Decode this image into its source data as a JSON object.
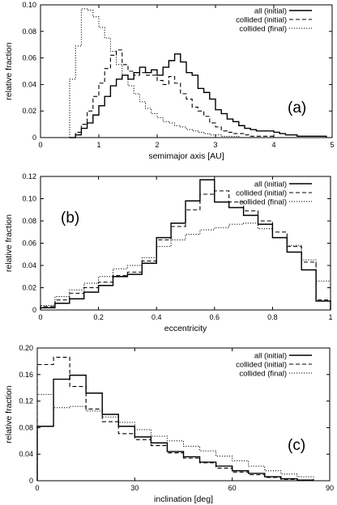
{
  "chart_data": [
    {
      "type": "line",
      "step": true,
      "panel_label": "(a)",
      "xlabel": "semimajor axis [AU]",
      "ylabel": "relative fraction",
      "xlim": [
        0,
        5
      ],
      "ylim": [
        0,
        0.1
      ],
      "xticks": [
        0,
        1,
        2,
        3,
        4,
        5
      ],
      "yticks": [
        0,
        0.02,
        0.04,
        0.06,
        0.08,
        0.1
      ],
      "xtick_labels": [
        "0",
        "1",
        "2",
        "3",
        "4",
        "5"
      ],
      "ytick_labels": [
        "0",
        "0.02",
        "0.04",
        "0.06",
        "0.08",
        "0.10"
      ],
      "grid": false,
      "legend_position": "top-right",
      "series": [
        {
          "name": "all (initial)",
          "dash": "solid",
          "x": [
            0.5,
            0.6,
            0.7,
            0.8,
            0.9,
            1.0,
            1.1,
            1.2,
            1.3,
            1.4,
            1.5,
            1.6,
            1.7,
            1.8,
            1.9,
            2.0,
            2.1,
            2.2,
            2.3,
            2.4,
            2.5,
            2.6,
            2.7,
            2.8,
            2.9,
            3.0,
            3.1,
            3.2,
            3.3,
            3.4,
            3.5,
            3.6,
            3.7,
            3.8,
            3.9,
            4.0,
            4.1,
            4.2,
            4.3,
            4.4,
            4.5,
            4.6,
            4.7,
            4.8
          ],
          "values": [
            0,
            0.002,
            0.007,
            0.011,
            0.017,
            0.024,
            0.031,
            0.039,
            0.044,
            0.047,
            0.044,
            0.049,
            0.053,
            0.049,
            0.051,
            0.047,
            0.053,
            0.058,
            0.063,
            0.057,
            0.049,
            0.047,
            0.037,
            0.034,
            0.029,
            0.021,
            0.018,
            0.014,
            0.012,
            0.009,
            0.007,
            0.006,
            0.005,
            0.005,
            0.005,
            0.004,
            0.003,
            0.002,
            0.002,
            0.001,
            0.001,
            0.001,
            0.001,
            0.001
          ]
        },
        {
          "name": "collided (initial)",
          "dash": "dashed",
          "x": [
            0.5,
            0.6,
            0.7,
            0.8,
            0.9,
            1.0,
            1.1,
            1.2,
            1.3,
            1.4,
            1.5,
            1.6,
            1.7,
            1.8,
            1.9,
            2.0,
            2.1,
            2.2,
            2.3,
            2.4,
            2.5,
            2.6,
            2.7,
            2.8,
            2.9,
            3.0,
            3.1,
            3.2,
            3.3,
            3.4,
            3.5,
            3.6,
            3.7,
            3.8,
            3.9,
            4.0
          ],
          "values": [
            0,
            0.004,
            0.01,
            0.02,
            0.031,
            0.041,
            0.052,
            0.062,
            0.066,
            0.055,
            0.05,
            0.047,
            0.049,
            0.047,
            0.047,
            0.043,
            0.04,
            0.046,
            0.041,
            0.033,
            0.029,
            0.023,
            0.02,
            0.016,
            0.011,
            0.008,
            0.005,
            0.004,
            0.003,
            0.003,
            0.002,
            0.001,
            0.001,
            0.001,
            0.001,
            0
          ]
        },
        {
          "name": "collided (final)",
          "dash": "dotted",
          "x": [
            0.5,
            0.6,
            0.7,
            0.8,
            0.9,
            1.0,
            1.1,
            1.2,
            1.3,
            1.4,
            1.5,
            1.6,
            1.7,
            1.8,
            1.9,
            2.0,
            2.1,
            2.2,
            2.3,
            2.4,
            2.5,
            2.6,
            2.7,
            2.8,
            2.9,
            3.0,
            3.1,
            3.2,
            3.3,
            3.4
          ],
          "values": [
            0.044,
            0.069,
            0.097,
            0.096,
            0.091,
            0.083,
            0.075,
            0.065,
            0.055,
            0.047,
            0.039,
            0.033,
            0.027,
            0.022,
            0.018,
            0.015,
            0.012,
            0.011,
            0.009,
            0.008,
            0.006,
            0.005,
            0.004,
            0.003,
            0.002,
            0.002,
            0.001,
            0.001,
            0.001,
            0
          ]
        }
      ]
    },
    {
      "type": "line",
      "step": true,
      "panel_label": "(b)",
      "xlabel": "eccentricity",
      "ylabel": "relative fraction",
      "xlim": [
        0,
        1
      ],
      "ylim": [
        0,
        0.12
      ],
      "xticks": [
        0,
        0.2,
        0.4,
        0.6,
        0.8,
        1
      ],
      "yticks": [
        0,
        0.02,
        0.04,
        0.06,
        0.08,
        0.1,
        0.12
      ],
      "xtick_labels": [
        "0",
        "0.2",
        "0.4",
        "0.6",
        "0.8",
        "1"
      ],
      "ytick_labels": [
        "0",
        "0.02",
        "0.04",
        "0.06",
        "0.08",
        "0.10",
        "0.12"
      ],
      "grid": false,
      "legend_position": "top-right",
      "series": [
        {
          "name": "all (initial)",
          "dash": "solid",
          "x": [
            0,
            0.05,
            0.1,
            0.15,
            0.2,
            0.25,
            0.3,
            0.35,
            0.4,
            0.45,
            0.5,
            0.55,
            0.6,
            0.65,
            0.7,
            0.75,
            0.8,
            0.85,
            0.9,
            0.95
          ],
          "values": [
            0.002,
            0.006,
            0.01,
            0.016,
            0.022,
            0.03,
            0.032,
            0.042,
            0.065,
            0.078,
            0.098,
            0.117,
            0.097,
            0.092,
            0.085,
            0.077,
            0.065,
            0.052,
            0.036,
            0.008
          ]
        },
        {
          "name": "collided (initial)",
          "dash": "dashed",
          "x": [
            0,
            0.05,
            0.1,
            0.15,
            0.2,
            0.25,
            0.3,
            0.35,
            0.4,
            0.45,
            0.5,
            0.55,
            0.6,
            0.65,
            0.7,
            0.75,
            0.8,
            0.85,
            0.9,
            0.95
          ],
          "values": [
            0.003,
            0.009,
            0.015,
            0.02,
            0.025,
            0.031,
            0.034,
            0.044,
            0.063,
            0.075,
            0.09,
            0.104,
            0.107,
            0.097,
            0.089,
            0.08,
            0.07,
            0.057,
            0.043,
            0.009
          ]
        },
        {
          "name": "collided (final)",
          "dash": "dotted",
          "x": [
            0,
            0.05,
            0.1,
            0.15,
            0.2,
            0.25,
            0.3,
            0.35,
            0.4,
            0.45,
            0.5,
            0.55,
            0.6,
            0.65,
            0.7,
            0.75,
            0.8,
            0.85,
            0.9,
            0.95
          ],
          "values": [
            0.004,
            0.012,
            0.018,
            0.024,
            0.03,
            0.037,
            0.04,
            0.047,
            0.057,
            0.063,
            0.068,
            0.072,
            0.074,
            0.077,
            0.078,
            0.073,
            0.065,
            0.058,
            0.045,
            0.026
          ]
        }
      ]
    },
    {
      "type": "line",
      "step": true,
      "panel_label": "(c)",
      "xlabel": "inclination [deg]",
      "ylabel": "relative fraction",
      "xlim": [
        0,
        90
      ],
      "ylim": [
        0,
        0.2
      ],
      "xticks": [
        0,
        30,
        60,
        90
      ],
      "yticks": [
        0,
        0.04,
        0.08,
        0.12,
        0.16,
        0.2
      ],
      "xtick_labels": [
        "0",
        "30",
        "60",
        "90"
      ],
      "ytick_labels": [
        "0",
        "0.04",
        "0.08",
        "0.12",
        "0.16",
        "0.20"
      ],
      "grid": false,
      "legend_position": "top-right",
      "series": [
        {
          "name": "all (initial)",
          "dash": "solid",
          "x": [
            0,
            5,
            10,
            15,
            20,
            25,
            30,
            35,
            40,
            45,
            50,
            55,
            60,
            65,
            70,
            75,
            80
          ],
          "values": [
            0.082,
            0.153,
            0.159,
            0.132,
            0.1,
            0.082,
            0.066,
            0.057,
            0.044,
            0.036,
            0.028,
            0.022,
            0.015,
            0.011,
            0.006,
            0.003,
            0.001
          ]
        },
        {
          "name": "collided (initial)",
          "dash": "dashed",
          "x": [
            0,
            5,
            10,
            15,
            20,
            25,
            30,
            35,
            40,
            45,
            50,
            55,
            60,
            65,
            70,
            75,
            80
          ],
          "values": [
            0.175,
            0.186,
            0.142,
            0.108,
            0.089,
            0.071,
            0.062,
            0.053,
            0.042,
            0.034,
            0.027,
            0.019,
            0.013,
            0.009,
            0.005,
            0.002,
            0.001
          ]
        },
        {
          "name": "collided (final)",
          "dash": "dotted",
          "x": [
            0,
            5,
            10,
            15,
            20,
            25,
            30,
            35,
            40,
            45,
            50,
            55,
            60,
            65,
            70,
            75,
            80
          ],
          "values": [
            0.13,
            0.11,
            0.112,
            0.105,
            0.096,
            0.088,
            0.077,
            0.067,
            0.06,
            0.052,
            0.045,
            0.037,
            0.03,
            0.022,
            0.015,
            0.01,
            0.006
          ]
        }
      ]
    }
  ]
}
